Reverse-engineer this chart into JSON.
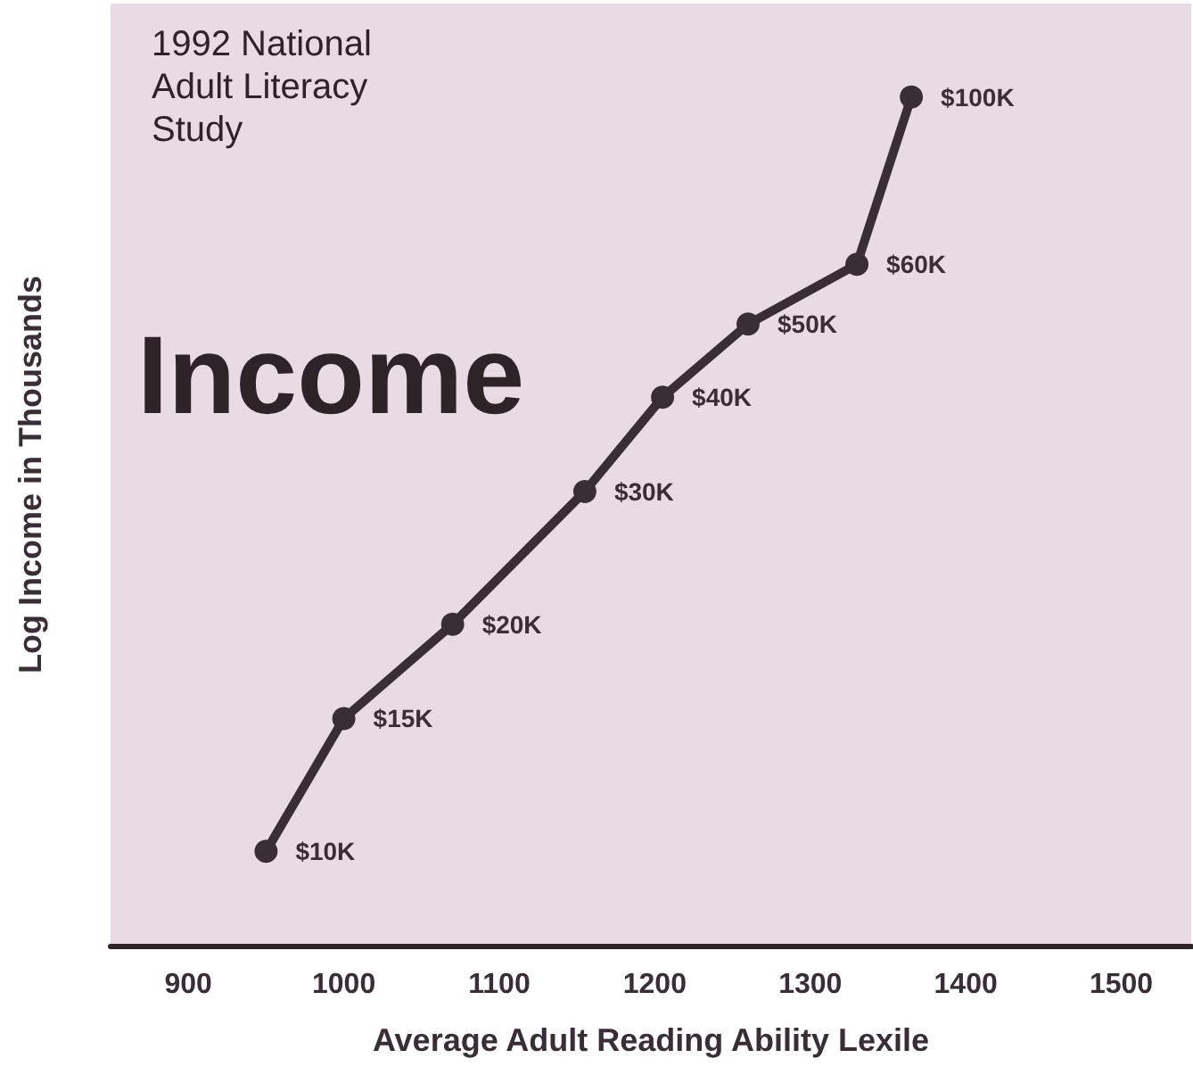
{
  "chart_data": {
    "type": "line",
    "title": "Income",
    "xlabel": "Average Adult Reading Ability Lexile",
    "ylabel": "Log Income in Thousands",
    "annotations": [
      "1992 National\nAdult Literacy\nStudy"
    ],
    "x": [
      950,
      1000,
      1070,
      1155,
      1205,
      1260,
      1330,
      1365
    ],
    "series": [
      {
        "color": "#3a2e36",
        "values": [
          10,
          15,
          20,
          30,
          40,
          50,
          60,
          100
        ],
        "value_labels": [
          "$10K",
          "$15K",
          "$20K",
          "$30K",
          "$40K",
          "$50K",
          "$60K",
          "$100K"
        ]
      }
    ],
    "xlim": [
      850,
      1545
    ],
    "xticks": [
      900,
      1000,
      1100,
      1200,
      1300,
      1400,
      1500
    ],
    "ylim": [
      7.5,
      133
    ],
    "log": "y",
    "tick_labels": "x",
    "grid": false,
    "marker": "circle",
    "line_style": "solid"
  }
}
